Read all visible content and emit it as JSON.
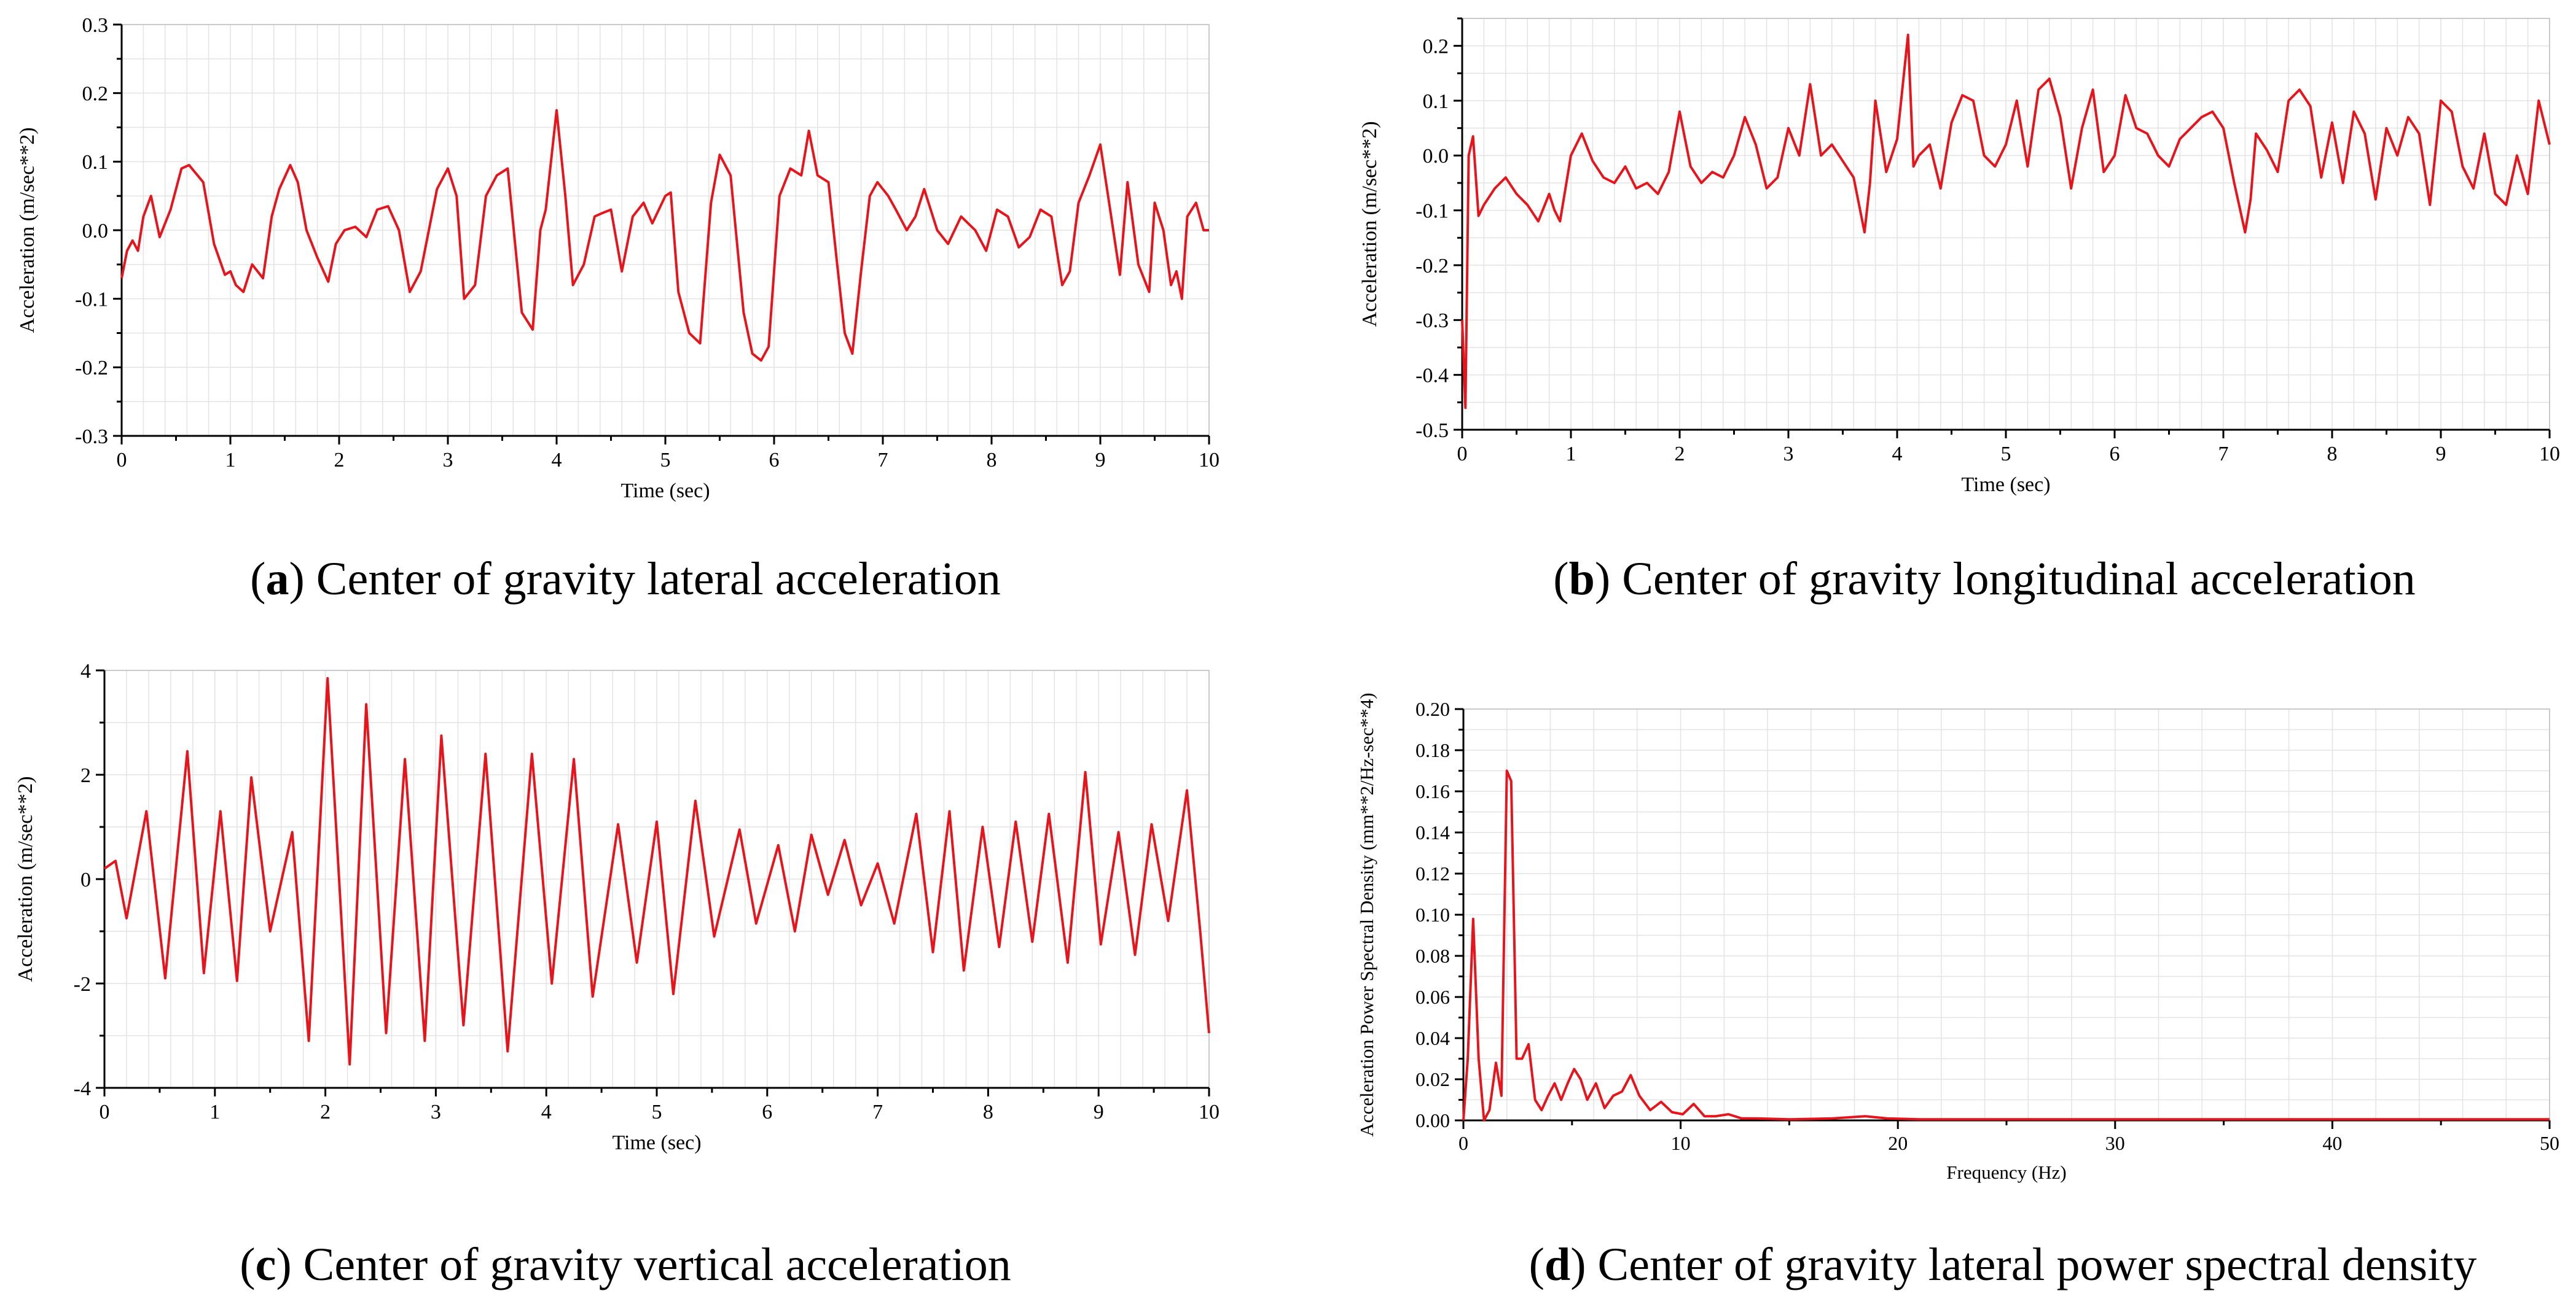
{
  "chart_data": [
    {
      "id": "a",
      "type": "line",
      "caption_letter": "a",
      "caption_text": " Center of gravity lateral acceleration",
      "xlabel": "Time (sec)",
      "ylabel": "Acceleration (m/sec**2)",
      "xlim": [
        0,
        10
      ],
      "ylim": [
        -0.3,
        0.3
      ],
      "xticks": [
        0,
        1,
        2,
        3,
        4,
        5,
        6,
        7,
        8,
        9,
        10
      ],
      "xtick_labels": [
        "0",
        "1",
        "2",
        "3",
        "4",
        "5",
        "6",
        "7",
        "8",
        "9",
        "10"
      ],
      "yticks": [
        0.3,
        0.2,
        0.1,
        0.0,
        -0.1,
        -0.2,
        -0.3
      ],
      "ytick_labels": [
        "0.3",
        "0.2",
        "0.1",
        "0.0",
        "-0.1",
        "-0.2",
        "-0.3"
      ],
      "grid": true,
      "line_color": "#e8141c",
      "series": [
        {
          "x": [
            0,
            0.05,
            0.1,
            0.15,
            0.2,
            0.27,
            0.35,
            0.45,
            0.55,
            0.62,
            0.75,
            0.85,
            0.95,
            1.0,
            1.05,
            1.12,
            1.2,
            1.3,
            1.38,
            1.45,
            1.55,
            1.62,
            1.7,
            1.8,
            1.9,
            1.97,
            2.05,
            2.15,
            2.25,
            2.35,
            2.45,
            2.55,
            2.65,
            2.75,
            2.9,
            3.0,
            3.08,
            3.15,
            3.25,
            3.35,
            3.45,
            3.55,
            3.68,
            3.78,
            3.85,
            3.9,
            4.0,
            4.08,
            4.15,
            4.25,
            4.35,
            4.42,
            4.5,
            4.6,
            4.7,
            4.8,
            4.88,
            5.0,
            5.05,
            5.12,
            5.22,
            5.32,
            5.42,
            5.5,
            5.6,
            5.72,
            5.8,
            5.88,
            5.95,
            6.05,
            6.15,
            6.25,
            6.32,
            6.4,
            6.5,
            6.58,
            6.65,
            6.72,
            6.8,
            6.88,
            6.95,
            7.05,
            7.12,
            7.22,
            7.3,
            7.38,
            7.5,
            7.6,
            7.72,
            7.85,
            7.95,
            8.05,
            8.15,
            8.25,
            8.35,
            8.45,
            8.55,
            8.65,
            8.72,
            8.8,
            8.9,
            9.0,
            9.1,
            9.18,
            9.25,
            9.35,
            9.45,
            9.5,
            9.58,
            9.65,
            9.7,
            9.75,
            9.8,
            9.88,
            9.95,
            10.0
          ],
          "y": [
            -0.07,
            -0.03,
            -0.015,
            -0.03,
            0.02,
            0.05,
            -0.01,
            0.03,
            0.09,
            0.095,
            0.07,
            -0.02,
            -0.065,
            -0.06,
            -0.08,
            -0.09,
            -0.05,
            -0.07,
            0.02,
            0.06,
            0.095,
            0.07,
            0.0,
            -0.04,
            -0.075,
            -0.02,
            0.0,
            0.005,
            -0.01,
            0.03,
            0.035,
            0.0,
            -0.09,
            -0.06,
            0.06,
            0.09,
            0.05,
            -0.1,
            -0.08,
            0.05,
            0.08,
            0.09,
            -0.12,
            -0.145,
            0.0,
            0.03,
            0.175,
            0.05,
            -0.08,
            -0.05,
            0.02,
            0.025,
            0.03,
            -0.06,
            0.02,
            0.04,
            0.01,
            0.05,
            0.055,
            -0.09,
            -0.15,
            -0.165,
            0.04,
            0.11,
            0.08,
            -0.12,
            -0.18,
            -0.19,
            -0.17,
            0.05,
            0.09,
            0.08,
            0.145,
            0.08,
            0.07,
            -0.05,
            -0.15,
            -0.18,
            -0.06,
            0.05,
            0.07,
            0.05,
            0.03,
            0.0,
            0.02,
            0.06,
            0.0,
            -0.02,
            0.02,
            0.0,
            -0.03,
            0.03,
            0.02,
            -0.025,
            -0.01,
            0.03,
            0.02,
            -0.08,
            -0.06,
            0.04,
            0.08,
            0.125,
            0.02,
            -0.065,
            0.07,
            -0.05,
            -0.09,
            0.04,
            0.0,
            -0.08,
            -0.06,
            -0.1,
            0.02,
            0.04,
            0.0,
            0.0
          ]
        }
      ]
    },
    {
      "id": "b",
      "type": "line",
      "caption_letter": "b",
      "caption_text": " Center of gravity longitudinal acceleration",
      "xlabel": "Time (sec)",
      "ylabel": "Acceleration (m/sec**2)",
      "xlim": [
        0,
        10
      ],
      "ylim": [
        -0.5,
        0.25
      ],
      "xticks": [
        0,
        1,
        2,
        3,
        4,
        5,
        6,
        7,
        8,
        9,
        10
      ],
      "xtick_labels": [
        "0",
        "1",
        "2",
        "3",
        "4",
        "5",
        "6",
        "7",
        "8",
        "9",
        "10"
      ],
      "yticks": [
        0.2,
        0.1,
        0.0,
        -0.1,
        -0.2,
        -0.3,
        -0.4,
        -0.5
      ],
      "ytick_labels": [
        "0.2",
        "0.1",
        "0.0",
        "-0.1",
        "-0.2",
        "-0.3",
        "-0.4",
        "-0.5"
      ],
      "grid": true,
      "line_color": "#e8141c",
      "series": [
        {
          "x": [
            0,
            0.03,
            0.06,
            0.1,
            0.15,
            0.2,
            0.3,
            0.4,
            0.5,
            0.6,
            0.7,
            0.8,
            0.85,
            0.9,
            1.0,
            1.1,
            1.2,
            1.3,
            1.4,
            1.5,
            1.6,
            1.7,
            1.8,
            1.9,
            2.0,
            2.05,
            2.1,
            2.2,
            2.3,
            2.4,
            2.5,
            2.6,
            2.7,
            2.8,
            2.9,
            3.0,
            3.1,
            3.2,
            3.3,
            3.4,
            3.5,
            3.6,
            3.7,
            3.75,
            3.8,
            3.9,
            4.0,
            4.1,
            4.15,
            4.2,
            4.3,
            4.4,
            4.5,
            4.6,
            4.7,
            4.8,
            4.9,
            5.0,
            5.1,
            5.2,
            5.3,
            5.4,
            5.5,
            5.6,
            5.7,
            5.8,
            5.9,
            6.0,
            6.1,
            6.2,
            6.3,
            6.4,
            6.5,
            6.6,
            6.7,
            6.8,
            6.9,
            7.0,
            7.1,
            7.2,
            7.25,
            7.3,
            7.4,
            7.5,
            7.6,
            7.7,
            7.8,
            7.9,
            8.0,
            8.1,
            8.2,
            8.3,
            8.4,
            8.5,
            8.6,
            8.7,
            8.8,
            8.9,
            9.0,
            9.1,
            9.2,
            9.3,
            9.4,
            9.5,
            9.6,
            9.7,
            9.8,
            9.9,
            10.0
          ],
          "y": [
            -0.3,
            -0.46,
            0.0,
            0.035,
            -0.11,
            -0.09,
            -0.06,
            -0.04,
            -0.07,
            -0.09,
            -0.12,
            -0.07,
            -0.1,
            -0.12,
            0.0,
            0.04,
            -0.01,
            -0.04,
            -0.05,
            -0.02,
            -0.06,
            -0.05,
            -0.07,
            -0.03,
            0.08,
            0.03,
            -0.02,
            -0.05,
            -0.03,
            -0.04,
            0.0,
            0.07,
            0.02,
            -0.06,
            -0.04,
            0.05,
            0.0,
            0.13,
            0.0,
            0.02,
            -0.01,
            -0.04,
            -0.14,
            -0.05,
            0.1,
            -0.03,
            0.03,
            0.22,
            -0.02,
            0.0,
            0.02,
            -0.06,
            0.06,
            0.11,
            0.1,
            0.0,
            -0.02,
            0.02,
            0.1,
            -0.02,
            0.12,
            0.14,
            0.07,
            -0.06,
            0.05,
            0.12,
            -0.03,
            0.0,
            0.11,
            0.05,
            0.04,
            0.0,
            -0.02,
            0.03,
            0.05,
            0.07,
            0.08,
            0.05,
            -0.05,
            -0.14,
            -0.08,
            0.04,
            0.01,
            -0.03,
            0.1,
            0.12,
            0.09,
            -0.04,
            0.06,
            -0.05,
            0.08,
            0.04,
            -0.08,
            0.05,
            0.0,
            0.07,
            0.04,
            -0.09,
            0.1,
            0.08,
            -0.02,
            -0.06,
            0.04,
            -0.07,
            -0.09,
            0.0,
            -0.07,
            0.1,
            0.02
          ]
        }
      ]
    },
    {
      "id": "c",
      "type": "line",
      "caption_letter": "c",
      "caption_text": " Center of gravity vertical acceleration",
      "xlabel": "Time (sec)",
      "ylabel": "Acceleration (m/sec**2)",
      "xlim": [
        0,
        10
      ],
      "ylim": [
        -4,
        4
      ],
      "xticks": [
        0,
        1,
        2,
        3,
        4,
        5,
        6,
        7,
        8,
        9,
        10
      ],
      "xtick_labels": [
        "0",
        "1",
        "2",
        "3",
        "4",
        "5",
        "6",
        "7",
        "8",
        "9",
        "10"
      ],
      "yticks": [
        4,
        2,
        0,
        -2,
        -4
      ],
      "ytick_labels": [
        "4",
        "2",
        "0",
        "-2",
        "-4"
      ],
      "grid": true,
      "line_color": "#e8141c",
      "series": [
        {
          "x": [
            0,
            0.1,
            0.2,
            0.38,
            0.55,
            0.75,
            0.9,
            1.05,
            1.2,
            1.33,
            1.5,
            1.7,
            1.85,
            2.02,
            2.22,
            2.37,
            2.55,
            2.72,
            2.9,
            3.05,
            3.25,
            3.45,
            3.65,
            3.87,
            4.05,
            4.25,
            4.42,
            4.65,
            4.82,
            5.0,
            5.15,
            5.35,
            5.52,
            5.75,
            5.9,
            6.1,
            6.25,
            6.4,
            6.55,
            6.7,
            6.85,
            7.0,
            7.15,
            7.35,
            7.5,
            7.65,
            7.78,
            7.95,
            8.1,
            8.25,
            8.4,
            8.55,
            8.72,
            8.88,
            9.02,
            9.18,
            9.33,
            9.48,
            9.63,
            9.8,
            9.92,
            10.0
          ],
          "y": [
            0.2,
            0.35,
            -0.75,
            1.3,
            -1.9,
            2.45,
            -1.8,
            1.3,
            -1.95,
            1.95,
            -1.0,
            0.9,
            -3.1,
            3.85,
            -3.55,
            3.35,
            -2.95,
            2.3,
            -3.1,
            2.75,
            -2.8,
            2.4,
            -3.3,
            2.4,
            -2.0,
            2.3,
            -2.25,
            1.05,
            -1.6,
            1.1,
            -2.2,
            1.5,
            -1.1,
            0.95,
            -0.85,
            0.65,
            -1.0,
            0.85,
            -0.3,
            0.75,
            -0.5,
            0.3,
            -0.85,
            1.25,
            -1.4,
            1.3,
            -1.75,
            1.0,
            -1.3,
            1.1,
            -1.2,
            1.25,
            -1.6,
            2.05,
            -1.25,
            0.9,
            -1.45,
            1.05,
            -0.8,
            1.7,
            -1.0,
            -2.95
          ]
        }
      ]
    },
    {
      "id": "d",
      "type": "line",
      "caption_letter": "d",
      "caption_text": " Center of gravity lateral power spectral density",
      "xlabel": "Frequency (Hz)",
      "ylabel": "Acceleration Power Spectral Density (mm**2/Hz-sec**4)",
      "xlim": [
        0,
        50
      ],
      "ylim": [
        0,
        0.2
      ],
      "xticks": [
        0,
        10,
        20,
        30,
        40,
        50
      ],
      "xtick_labels": [
        "0",
        "10",
        "20",
        "30",
        "40",
        "50"
      ],
      "yticks": [
        0.2,
        0.18,
        0.16,
        0.14,
        0.12,
        0.1,
        0.08,
        0.06,
        0.04,
        0.02,
        0.0
      ],
      "ytick_labels": [
        "0.20",
        "0.18",
        "0.16",
        "0.14",
        "0.12",
        "0.10",
        "0.08",
        "0.06",
        "0.04",
        "0.02",
        "0.00"
      ],
      "grid": true,
      "line_color": "#e8141c",
      "series": [
        {
          "x": [
            0,
            0.2,
            0.45,
            0.7,
            0.95,
            1.2,
            1.5,
            1.75,
            2.0,
            2.2,
            2.45,
            2.7,
            3.0,
            3.3,
            3.6,
            3.9,
            4.2,
            4.5,
            4.8,
            5.1,
            5.4,
            5.7,
            6.1,
            6.5,
            6.9,
            7.3,
            7.7,
            8.1,
            8.6,
            9.1,
            9.6,
            10.1,
            10.6,
            11.1,
            11.6,
            12.2,
            12.8,
            13.5,
            15,
            17,
            18.5,
            19.5,
            21,
            25,
            30,
            40,
            50
          ],
          "y": [
            0.0,
            0.03,
            0.098,
            0.03,
            0.0,
            0.005,
            0.028,
            0.012,
            0.17,
            0.165,
            0.03,
            0.03,
            0.037,
            0.01,
            0.005,
            0.012,
            0.018,
            0.01,
            0.018,
            0.025,
            0.02,
            0.01,
            0.018,
            0.006,
            0.012,
            0.014,
            0.022,
            0.012,
            0.005,
            0.009,
            0.004,
            0.003,
            0.008,
            0.002,
            0.002,
            0.003,
            0.001,
            0.001,
            0.0005,
            0.001,
            0.002,
            0.001,
            0.0005,
            0.0005,
            0.0005,
            0.0005,
            0.0005
          ]
        }
      ]
    }
  ]
}
